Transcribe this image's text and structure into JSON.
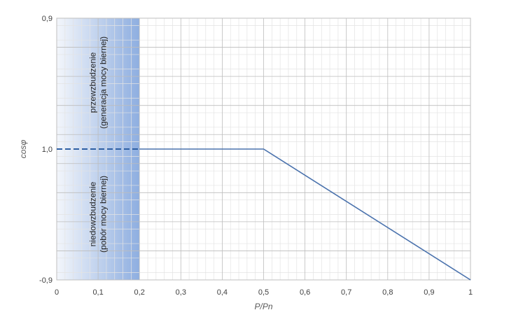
{
  "chart_data": {
    "type": "line",
    "xlabel": "P/Pn",
    "ylabel": "cosφ",
    "xlim": [
      0,
      1
    ],
    "x_ticks": [
      "0",
      "0,1",
      "0,2",
      "0,3",
      "0,4",
      "0,5",
      "0,6",
      "0,7",
      "0,8",
      "0,9",
      "1"
    ],
    "y_ticks": [
      "0,9",
      "1,0",
      "-0,9"
    ],
    "grid": true,
    "series": [
      {
        "style": "dashed",
        "color": "#2e5fa3",
        "points": [
          {
            "x": 0,
            "y": "1,0"
          },
          {
            "x": 0.2,
            "y": "1,0"
          }
        ]
      },
      {
        "style": "solid",
        "color": "#4a72ad",
        "points": [
          {
            "x": 0.2,
            "y": "1,0"
          },
          {
            "x": 0.5,
            "y": "1,0"
          },
          {
            "x": 1.0,
            "y": "-0,9"
          }
        ]
      }
    ],
    "shaded_region": {
      "x_range": [
        0,
        0.2
      ],
      "gradient": [
        "#f3f6fb",
        "#8eaee0"
      ]
    },
    "annotations": {
      "upper": [
        "przewzbudzenie",
        "(generacja mocy biernej)"
      ],
      "lower": [
        "niedowzbudzenie",
        "(pobór mocy biernej)"
      ]
    }
  }
}
